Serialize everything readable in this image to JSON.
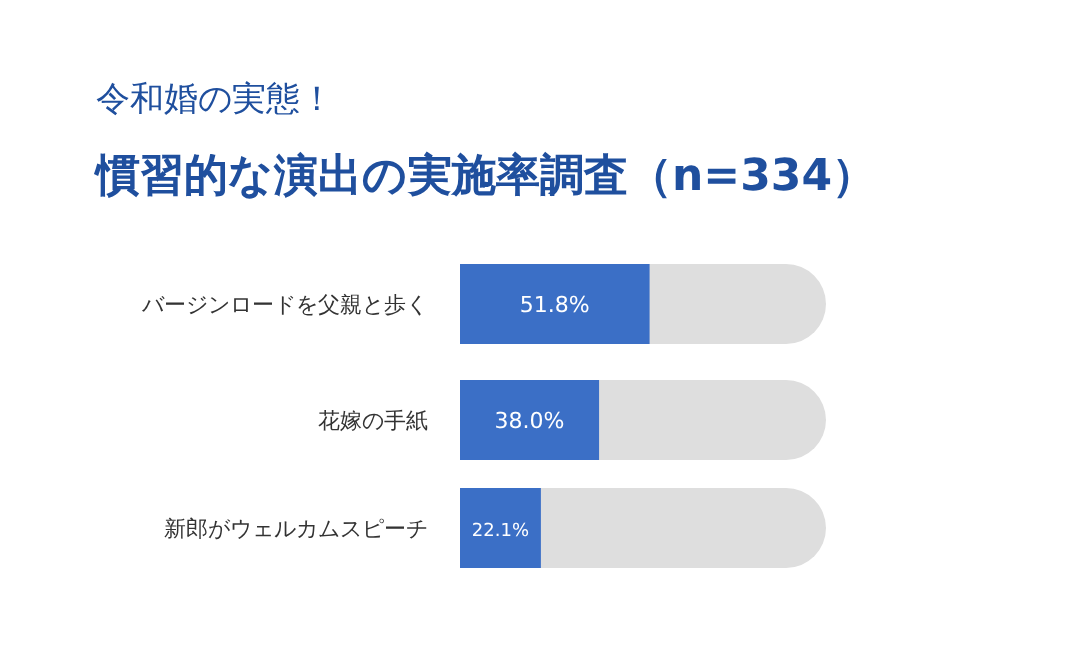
{
  "chart_data": {
    "type": "bar",
    "orientation": "horizontal",
    "title": "令和婚の実態！",
    "subtitle": "慣習的な演出の実施率調査（n=334）",
    "categories": [
      "バージンロードを父親と歩く",
      "花嫁の手紙",
      "新郎がウェルカムスピーチ"
    ],
    "values": [
      51.8,
      38.0,
      22.1
    ],
    "value_labels": [
      "51.8%",
      "38.0%",
      "22.1%"
    ],
    "color": "#3b6fc6",
    "xlim": [
      0,
      100
    ]
  }
}
